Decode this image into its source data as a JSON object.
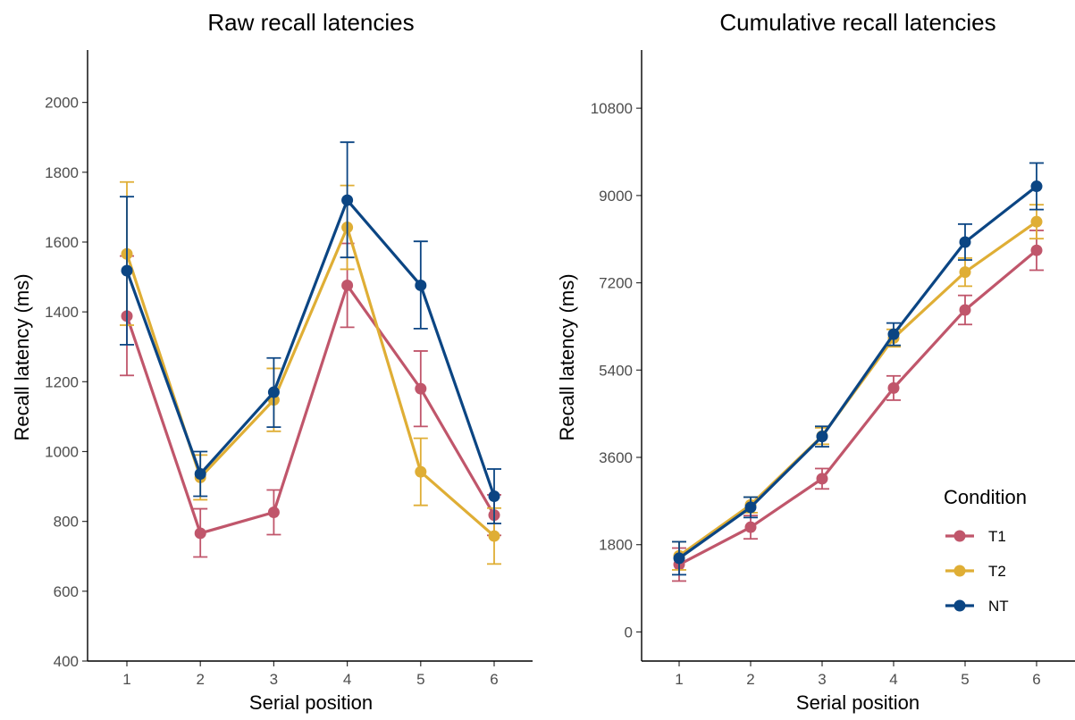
{
  "colors": {
    "T1": "#C0566B",
    "T2": "#DFAE35",
    "NT": "#0B4583"
  },
  "legend": {
    "title": "Condition",
    "entries": [
      "T1",
      "T2",
      "NT"
    ],
    "placement": "bottom-right of right panel"
  },
  "chart_data": [
    {
      "type": "line",
      "title": "Raw recall latencies",
      "xlabel": "Serial position",
      "ylabel": "Recall latency (ms)",
      "x": [
        1,
        2,
        3,
        4,
        5,
        6
      ],
      "x_ticks": [
        "1",
        "2",
        "3",
        "4",
        "5",
        "6"
      ],
      "ylim": [
        400,
        2150
      ],
      "y_ticks": [
        "400",
        "600",
        "800",
        "1000",
        "1200",
        "1400",
        "1600",
        "1800",
        "2000"
      ],
      "grid": false,
      "series": [
        {
          "name": "T1",
          "values": [
            1388,
            766,
            826,
            1476,
            1180,
            818
          ],
          "err_low": [
            1218,
            698,
            762,
            1356,
            1072,
            760
          ],
          "err_high": [
            1560,
            836,
            890,
            1596,
            1288,
            876
          ]
        },
        {
          "name": "T2",
          "values": [
            1566,
            926,
            1148,
            1642,
            942,
            758
          ],
          "err_low": [
            1362,
            862,
            1058,
            1522,
            846,
            678
          ],
          "err_high": [
            1772,
            990,
            1238,
            1762,
            1038,
            838
          ]
        },
        {
          "name": "NT",
          "values": [
            1518,
            936,
            1170,
            1720,
            1476,
            872
          ],
          "err_low": [
            1306,
            872,
            1070,
            1556,
            1352,
            794
          ],
          "err_high": [
            1730,
            1000,
            1268,
            1886,
            1602,
            950
          ]
        }
      ]
    },
    {
      "type": "line",
      "title": "Cumulative recall latencies",
      "xlabel": "Serial position",
      "ylabel": "Recall latency (ms)",
      "x": [
        1,
        2,
        3,
        4,
        5,
        6
      ],
      "x_ticks": [
        "1",
        "2",
        "3",
        "4",
        "5",
        "6"
      ],
      "ylim": [
        -600,
        12000
      ],
      "y_ticks": [
        "0",
        "1800",
        "3600",
        "5400",
        "7200",
        "9000",
        "10800"
      ],
      "grid": false,
      "series": [
        {
          "name": "T1",
          "values": [
            1390,
            2160,
            3160,
            5030,
            6640,
            7870
          ],
          "err_low": [
            1050,
            1920,
            2950,
            4780,
            6340,
            7460
          ],
          "err_high": [
            1730,
            2400,
            3370,
            5280,
            6940,
            8280
          ]
        },
        {
          "name": "T2",
          "values": [
            1570,
            2620,
            4040,
            6060,
            7420,
            8460
          ],
          "err_low": [
            1280,
            2460,
            3870,
            5880,
            7130,
            8110
          ],
          "err_high": [
            1860,
            2780,
            4210,
            6240,
            7710,
            8810
          ]
        },
        {
          "name": "NT",
          "values": [
            1520,
            2570,
            4030,
            6140,
            8040,
            9190
          ],
          "err_low": [
            1180,
            2360,
            3820,
            5910,
            7670,
            8710
          ],
          "err_high": [
            1860,
            2780,
            4240,
            6370,
            8410,
            9670
          ]
        }
      ]
    }
  ]
}
